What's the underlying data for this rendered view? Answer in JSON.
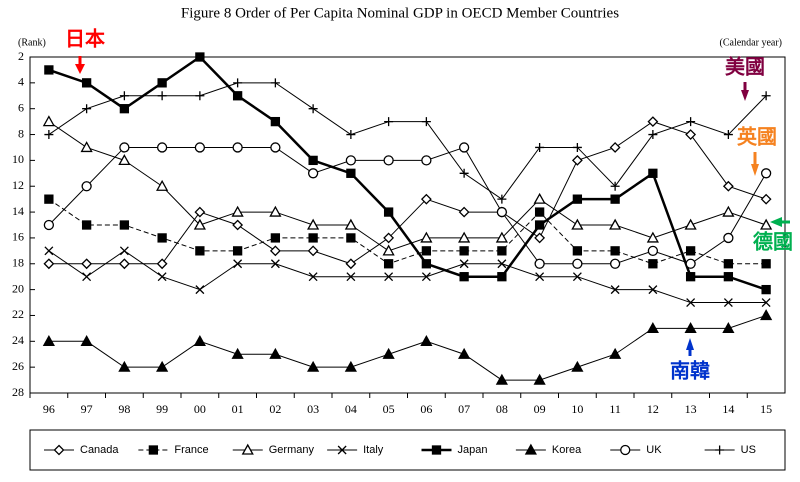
{
  "chart_data": {
    "type": "line",
    "title": "Figure 8 Order of Per Capita Nominal GDP in OECD Member Countries",
    "y_label": "(Rank)",
    "x_label": "(Calendar year)",
    "categories": [
      "96",
      "97",
      "98",
      "99",
      "00",
      "01",
      "02",
      "03",
      "04",
      "05",
      "06",
      "07",
      "08",
      "09",
      "10",
      "11",
      "12",
      "13",
      "14",
      "15"
    ],
    "ylim": [
      2,
      28
    ],
    "yticks": [
      2,
      4,
      6,
      8,
      10,
      12,
      14,
      16,
      18,
      20,
      22,
      24,
      26,
      28
    ],
    "y_inverted": true,
    "grid": false,
    "legend_position": "bottom",
    "series": [
      {
        "name": "Canada",
        "color": "#000000",
        "marker": "diamond",
        "filled": false,
        "line_style": "solid",
        "line_width": 1,
        "values": [
          18,
          18,
          18,
          18,
          14,
          15,
          17,
          17,
          18,
          16,
          13,
          14,
          14,
          16,
          10,
          9,
          7,
          8,
          12,
          13
        ]
      },
      {
        "name": "France",
        "color": "#000000",
        "marker": "square",
        "filled": true,
        "line_style": "dashed",
        "line_width": 1,
        "values": [
          13,
          15,
          15,
          16,
          17,
          17,
          16,
          16,
          16,
          18,
          17,
          17,
          17,
          14,
          17,
          17,
          18,
          17,
          18,
          18
        ]
      },
      {
        "name": "Germany",
        "color": "#000000",
        "marker": "triangle",
        "filled": false,
        "line_style": "solid",
        "line_width": 1,
        "values": [
          7,
          9,
          10,
          12,
          15,
          14,
          14,
          15,
          15,
          17,
          16,
          16,
          16,
          13,
          15,
          15,
          16,
          15,
          14,
          15
        ]
      },
      {
        "name": "Italy",
        "color": "#000000",
        "marker": "x",
        "filled": false,
        "line_style": "solid",
        "line_width": 1,
        "values": [
          17,
          19,
          17,
          19,
          20,
          18,
          18,
          19,
          19,
          19,
          19,
          18,
          18,
          19,
          19,
          20,
          20,
          21,
          21,
          21
        ]
      },
      {
        "name": "Japan",
        "color": "#000000",
        "marker": "square",
        "filled": true,
        "line_style": "solid",
        "line_width": 2.5,
        "values": [
          3,
          4,
          6,
          4,
          2,
          5,
          7,
          10,
          11,
          14,
          18,
          19,
          19,
          15,
          13,
          13,
          11,
          19,
          19,
          20
        ]
      },
      {
        "name": "Korea",
        "color": "#000000",
        "marker": "triangle",
        "filled": true,
        "line_style": "solid",
        "line_width": 1,
        "values": [
          24,
          24,
          26,
          26,
          24,
          25,
          25,
          26,
          26,
          25,
          24,
          25,
          27,
          27,
          26,
          25,
          23,
          23,
          23,
          22
        ]
      },
      {
        "name": "UK",
        "color": "#000000",
        "marker": "circle",
        "filled": false,
        "line_style": "solid",
        "line_width": 1,
        "values": [
          15,
          12,
          9,
          9,
          9,
          9,
          9,
          11,
          10,
          10,
          10,
          9,
          14,
          18,
          18,
          18,
          17,
          18,
          16,
          11
        ]
      },
      {
        "name": "US",
        "color": "#000000",
        "marker": "plus",
        "filled": false,
        "line_style": "solid",
        "line_width": 1,
        "values": [
          8,
          6,
          5,
          5,
          5,
          4,
          4,
          6,
          8,
          7,
          7,
          11,
          13,
          9,
          9,
          12,
          8,
          7,
          8,
          5
        ]
      }
    ],
    "annotations": [
      {
        "text": "日本",
        "color": "#ff0000"
      },
      {
        "text": "美國",
        "color": "#800040"
      },
      {
        "text": "英國",
        "color": "#f58220"
      },
      {
        "text": "德國",
        "color": "#00b050"
      },
      {
        "text": "南韓",
        "color": "#0033cc"
      }
    ]
  }
}
